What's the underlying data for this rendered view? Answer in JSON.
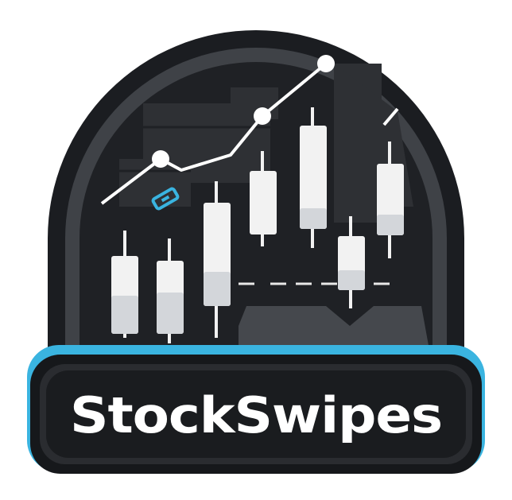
{
  "logo": {
    "wordmark": "StockSwipes"
  },
  "colors": {
    "dark": "#1b1d21",
    "ring_outer": "#202226",
    "ring_inner": "#45484d",
    "panel": "#2b2d31",
    "accent": "#3ab4e0",
    "candle": "#f2f2f2",
    "candle_shade": "#cfd2d6",
    "line": "#ffffff"
  },
  "icons": [
    "candlestick-chart-icon",
    "trend-line-icon",
    "chain-link-icon"
  ]
}
